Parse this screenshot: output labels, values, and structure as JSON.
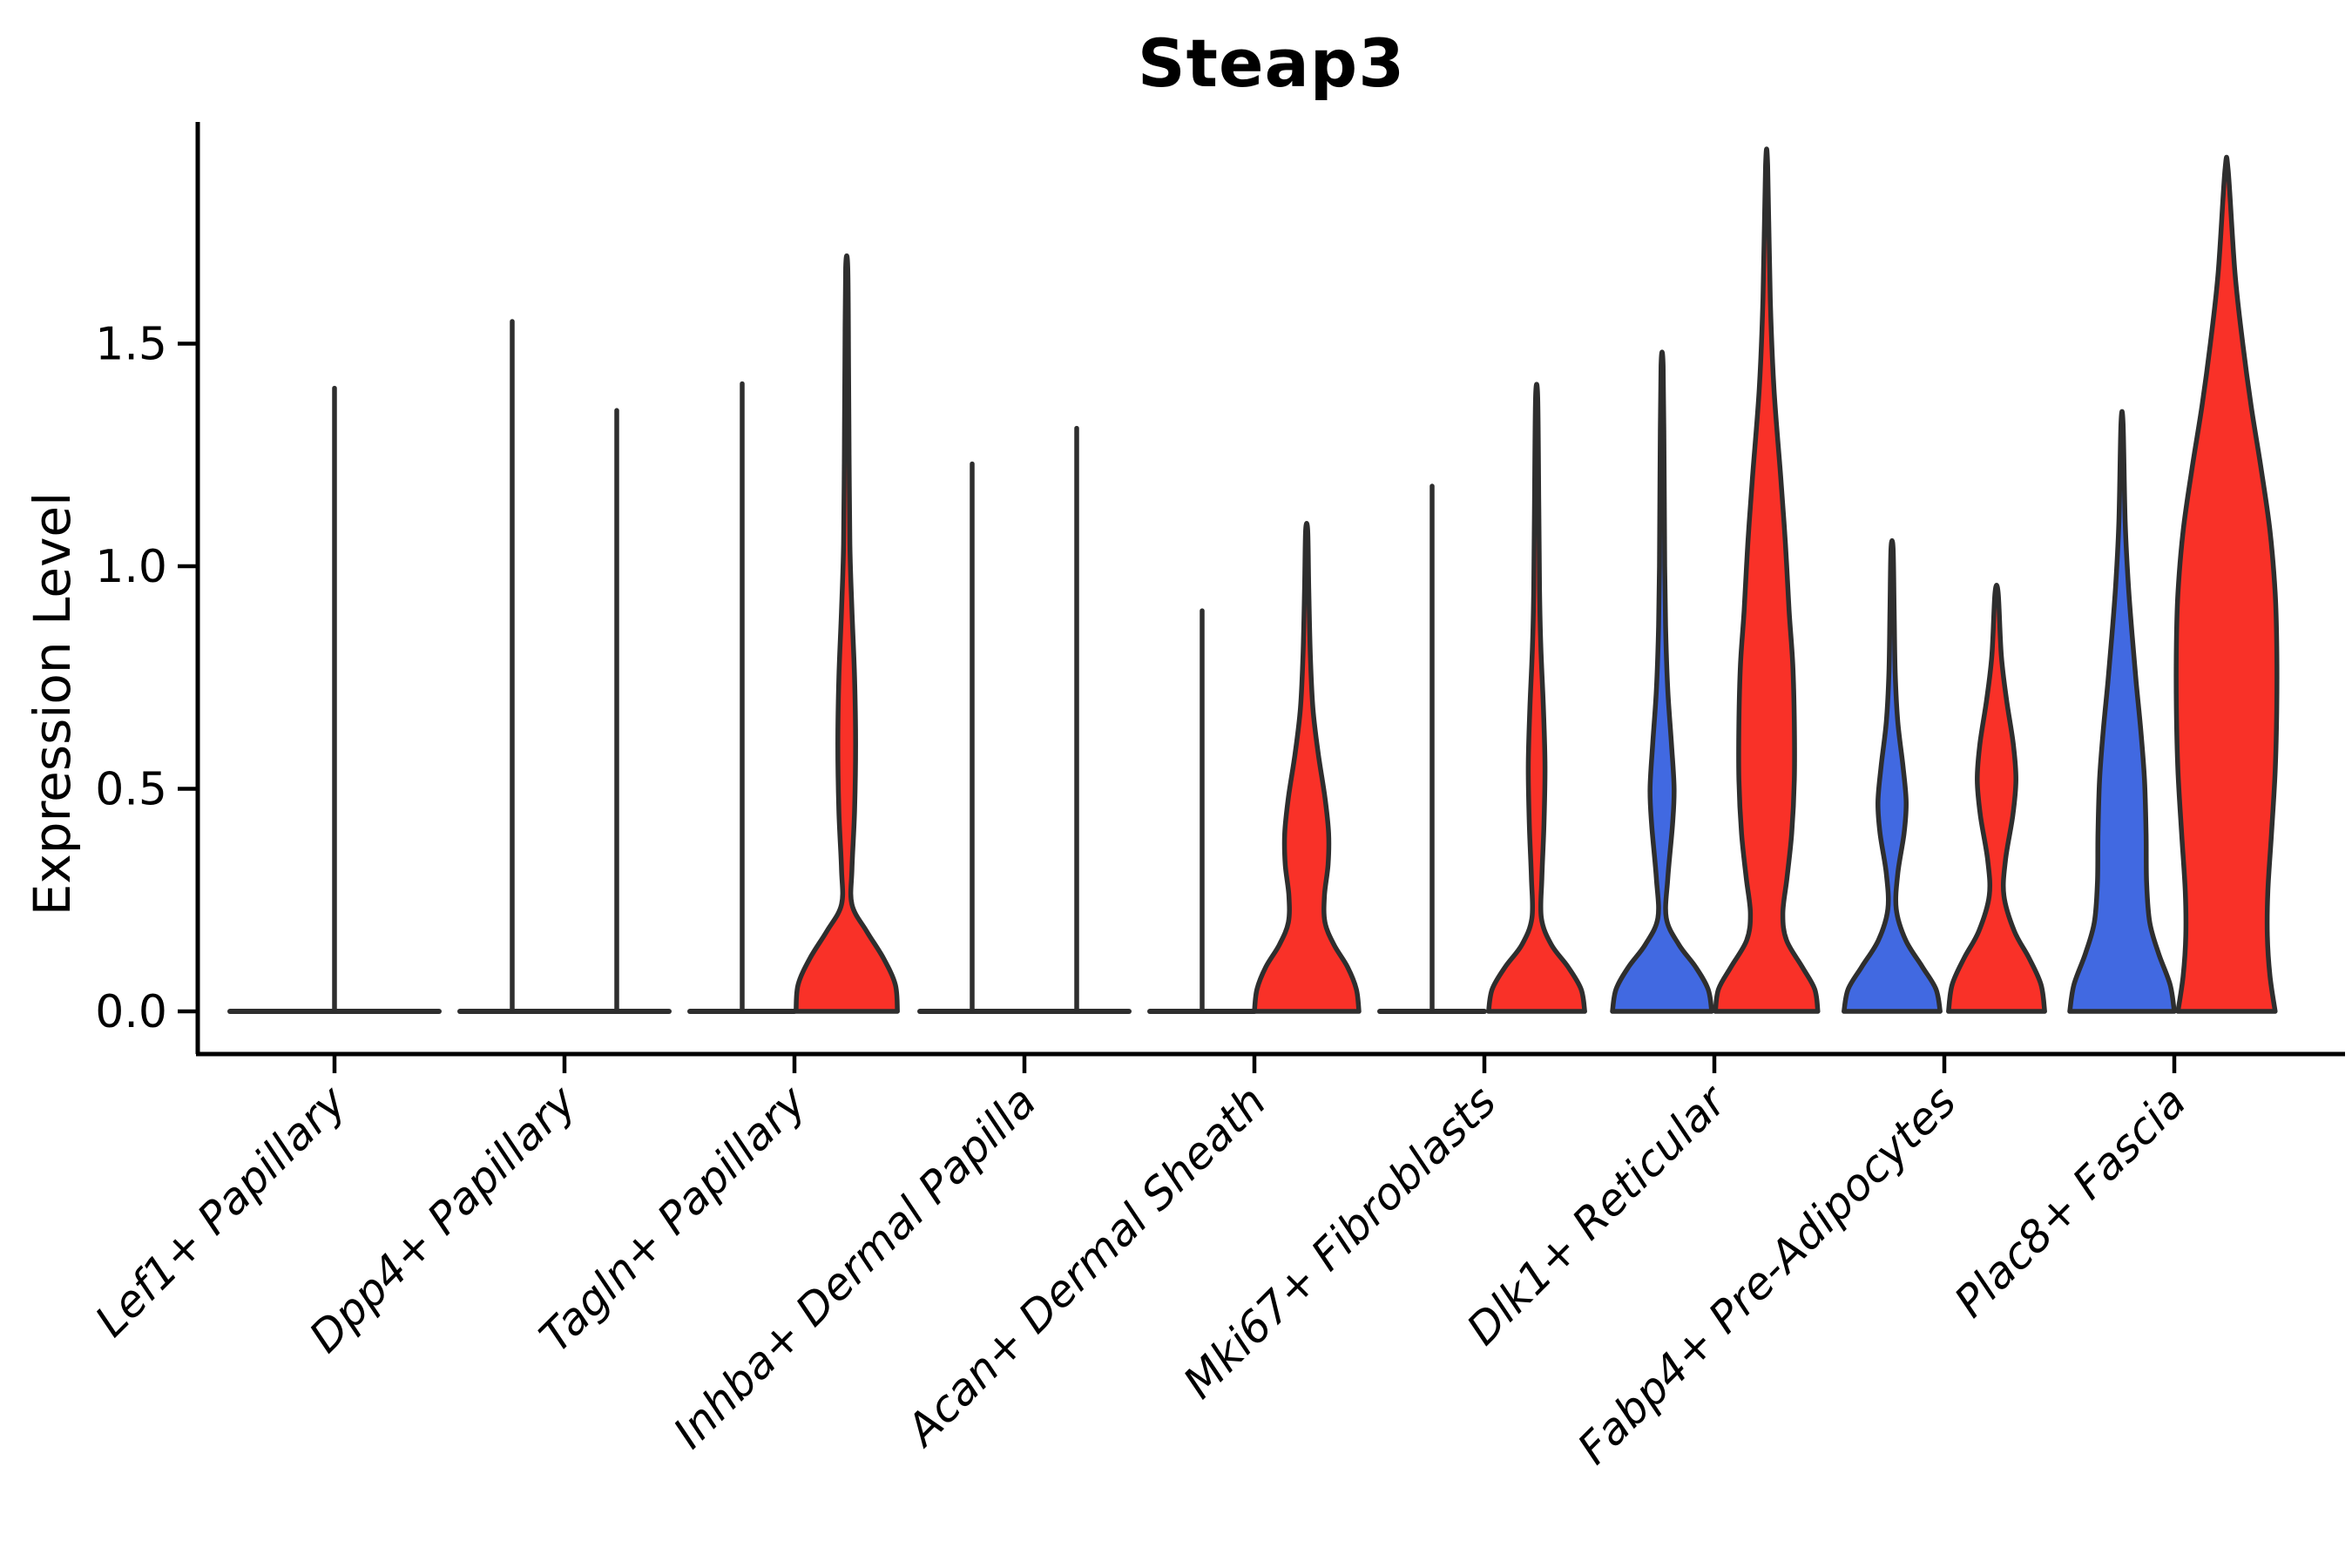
{
  "title": "Steap3",
  "ylabel": "Expression Level",
  "chart_data": {
    "type": "violin",
    "title": "Steap3",
    "subtitle": "",
    "xlabel": "",
    "ylabel": "Expression Level",
    "ylim": [
      -0.1,
      2.0
    ],
    "yticks": [
      "0.0",
      "0.5",
      "1.0",
      "1.5"
    ],
    "ytick_values": [
      0.0,
      0.5,
      1.0,
      1.5
    ],
    "grid": "off",
    "legend": "none",
    "categories": [
      "Lef1+ Papillary",
      "Dpp4+ Papillary",
      "Tagln+ Papillary",
      "Inhba+ Dermal Papilla",
      "Acan+ Dermal Sheath",
      "Mki67+ Fibroblasts",
      "Dlk1+ Reticular",
      "Fabp4+ Pre-Adipocytes",
      "Plac8+ Fascia"
    ],
    "colors": {
      "blue": "#4169E1",
      "red": "#F93128",
      "none": "none"
    },
    "outline_color": "#2e2e2e",
    "axis_color": "#000000",
    "violins": [
      {
        "category_index": 0,
        "side": "full",
        "fill": "none",
        "collapsed": true,
        "base_halfwidth_rel": 2.0,
        "max": 1.4
      },
      {
        "category_index": 1,
        "side": "left",
        "fill": "none",
        "collapsed": true,
        "base_halfwidth_rel": 1.0,
        "max": 1.55
      },
      {
        "category_index": 1,
        "side": "right",
        "fill": "none",
        "collapsed": true,
        "base_halfwidth_rel": 1.0,
        "max": 1.35
      },
      {
        "category_index": 2,
        "side": "left",
        "fill": "none",
        "collapsed": true,
        "base_halfwidth_rel": 1.0,
        "max": 1.41
      },
      {
        "category_index": 2,
        "side": "right",
        "fill": "red",
        "collapsed": false,
        "max": 1.67,
        "profile": [
          [
            0,
            0.97
          ],
          [
            0.06,
            0.93
          ],
          [
            0.12,
            0.7
          ],
          [
            0.18,
            0.38
          ],
          [
            0.24,
            0.1
          ],
          [
            0.32,
            0.1
          ],
          [
            0.45,
            0.15
          ],
          [
            0.6,
            0.17
          ],
          [
            0.75,
            0.15
          ],
          [
            0.9,
            0.1
          ],
          [
            1.05,
            0.06
          ],
          [
            1.25,
            0.045
          ],
          [
            1.45,
            0.035
          ],
          [
            1.67,
            0.02
          ]
        ]
      },
      {
        "category_index": 3,
        "side": "left",
        "fill": "none",
        "collapsed": true,
        "base_halfwidth_rel": 1.0,
        "max": 1.23
      },
      {
        "category_index": 3,
        "side": "right",
        "fill": "none",
        "collapsed": true,
        "base_halfwidth_rel": 1.0,
        "max": 1.31
      },
      {
        "category_index": 4,
        "side": "left",
        "fill": "none",
        "collapsed": true,
        "base_halfwidth_rel": 1.0,
        "max": 0.9
      },
      {
        "category_index": 4,
        "side": "right",
        "fill": "red",
        "collapsed": false,
        "max": 1.08,
        "profile": [
          [
            0,
            1.0
          ],
          [
            0.05,
            0.95
          ],
          [
            0.1,
            0.78
          ],
          [
            0.15,
            0.52
          ],
          [
            0.2,
            0.35
          ],
          [
            0.26,
            0.34
          ],
          [
            0.33,
            0.41
          ],
          [
            0.4,
            0.42
          ],
          [
            0.48,
            0.35
          ],
          [
            0.58,
            0.22
          ],
          [
            0.68,
            0.12
          ],
          [
            0.8,
            0.07
          ],
          [
            0.95,
            0.04
          ],
          [
            1.08,
            0.02
          ]
        ]
      },
      {
        "category_index": 5,
        "side": "left",
        "fill": "none",
        "collapsed": true,
        "base_halfwidth_rel": 1.0,
        "max": 1.18
      },
      {
        "category_index": 5,
        "side": "right",
        "fill": "red",
        "collapsed": false,
        "max": 1.38,
        "profile": [
          [
            0,
            0.92
          ],
          [
            0.05,
            0.85
          ],
          [
            0.1,
            0.6
          ],
          [
            0.15,
            0.28
          ],
          [
            0.21,
            0.09
          ],
          [
            0.3,
            0.1
          ],
          [
            0.42,
            0.14
          ],
          [
            0.55,
            0.16
          ],
          [
            0.68,
            0.13
          ],
          [
            0.82,
            0.08
          ],
          [
            0.95,
            0.055
          ],
          [
            1.15,
            0.04
          ],
          [
            1.38,
            0.02
          ]
        ]
      },
      {
        "category_index": 6,
        "side": "left",
        "fill": "blue",
        "collapsed": false,
        "max": 1.45,
        "profile": [
          [
            0,
            0.95
          ],
          [
            0.05,
            0.88
          ],
          [
            0.1,
            0.64
          ],
          [
            0.15,
            0.32
          ],
          [
            0.21,
            0.08
          ],
          [
            0.3,
            0.11
          ],
          [
            0.42,
            0.2
          ],
          [
            0.5,
            0.23
          ],
          [
            0.6,
            0.18
          ],
          [
            0.72,
            0.11
          ],
          [
            0.85,
            0.07
          ],
          [
            1.0,
            0.05
          ],
          [
            1.2,
            0.04
          ],
          [
            1.45,
            0.02
          ]
        ]
      },
      {
        "category_index": 6,
        "side": "right",
        "fill": "red",
        "collapsed": false,
        "max": 1.9,
        "profile": [
          [
            0,
            0.98
          ],
          [
            0.05,
            0.92
          ],
          [
            0.1,
            0.68
          ],
          [
            0.16,
            0.38
          ],
          [
            0.22,
            0.31
          ],
          [
            0.3,
            0.39
          ],
          [
            0.4,
            0.48
          ],
          [
            0.52,
            0.53
          ],
          [
            0.65,
            0.53
          ],
          [
            0.78,
            0.5
          ],
          [
            0.9,
            0.43
          ],
          [
            1.05,
            0.36
          ],
          [
            1.2,
            0.27
          ],
          [
            1.4,
            0.14
          ],
          [
            1.6,
            0.07
          ],
          [
            1.9,
            0.02
          ]
        ]
      },
      {
        "category_index": 7,
        "side": "left",
        "fill": "blue",
        "collapsed": false,
        "max": 1.04,
        "profile": [
          [
            0,
            0.92
          ],
          [
            0.05,
            0.84
          ],
          [
            0.1,
            0.58
          ],
          [
            0.16,
            0.26
          ],
          [
            0.23,
            0.08
          ],
          [
            0.31,
            0.11
          ],
          [
            0.4,
            0.23
          ],
          [
            0.47,
            0.27
          ],
          [
            0.55,
            0.21
          ],
          [
            0.65,
            0.11
          ],
          [
            0.76,
            0.06
          ],
          [
            0.9,
            0.04
          ],
          [
            1.04,
            0.02
          ]
        ]
      },
      {
        "category_index": 7,
        "side": "right",
        "fill": "red",
        "collapsed": false,
        "max": 0.94,
        "profile": [
          [
            0,
            0.92
          ],
          [
            0.06,
            0.85
          ],
          [
            0.12,
            0.62
          ],
          [
            0.18,
            0.34
          ],
          [
            0.26,
            0.14
          ],
          [
            0.34,
            0.17
          ],
          [
            0.44,
            0.31
          ],
          [
            0.52,
            0.37
          ],
          [
            0.6,
            0.32
          ],
          [
            0.7,
            0.19
          ],
          [
            0.8,
            0.09
          ],
          [
            0.94,
            0.03
          ]
        ]
      },
      {
        "category_index": 8,
        "side": "left",
        "fill": "blue",
        "collapsed": false,
        "max": 1.32,
        "profile": [
          [
            0,
            1.0
          ],
          [
            0.06,
            0.92
          ],
          [
            0.13,
            0.7
          ],
          [
            0.2,
            0.53
          ],
          [
            0.29,
            0.47
          ],
          [
            0.4,
            0.46
          ],
          [
            0.52,
            0.43
          ],
          [
            0.63,
            0.36
          ],
          [
            0.74,
            0.27
          ],
          [
            0.85,
            0.19
          ],
          [
            0.96,
            0.12
          ],
          [
            1.1,
            0.06
          ],
          [
            1.32,
            0.02
          ]
        ]
      },
      {
        "category_index": 8,
        "side": "right",
        "fill": "red",
        "collapsed": false,
        "max": 1.89,
        "profile": [
          [
            0,
            0.93
          ],
          [
            0.08,
            0.83
          ],
          [
            0.17,
            0.78
          ],
          [
            0.27,
            0.79
          ],
          [
            0.4,
            0.86
          ],
          [
            0.54,
            0.93
          ],
          [
            0.68,
            0.96
          ],
          [
            0.82,
            0.96
          ],
          [
            0.94,
            0.93
          ],
          [
            1.08,
            0.83
          ],
          [
            1.22,
            0.66
          ],
          [
            1.36,
            0.47
          ],
          [
            1.5,
            0.31
          ],
          [
            1.66,
            0.16
          ],
          [
            1.89,
            0.03
          ]
        ]
      }
    ]
  }
}
